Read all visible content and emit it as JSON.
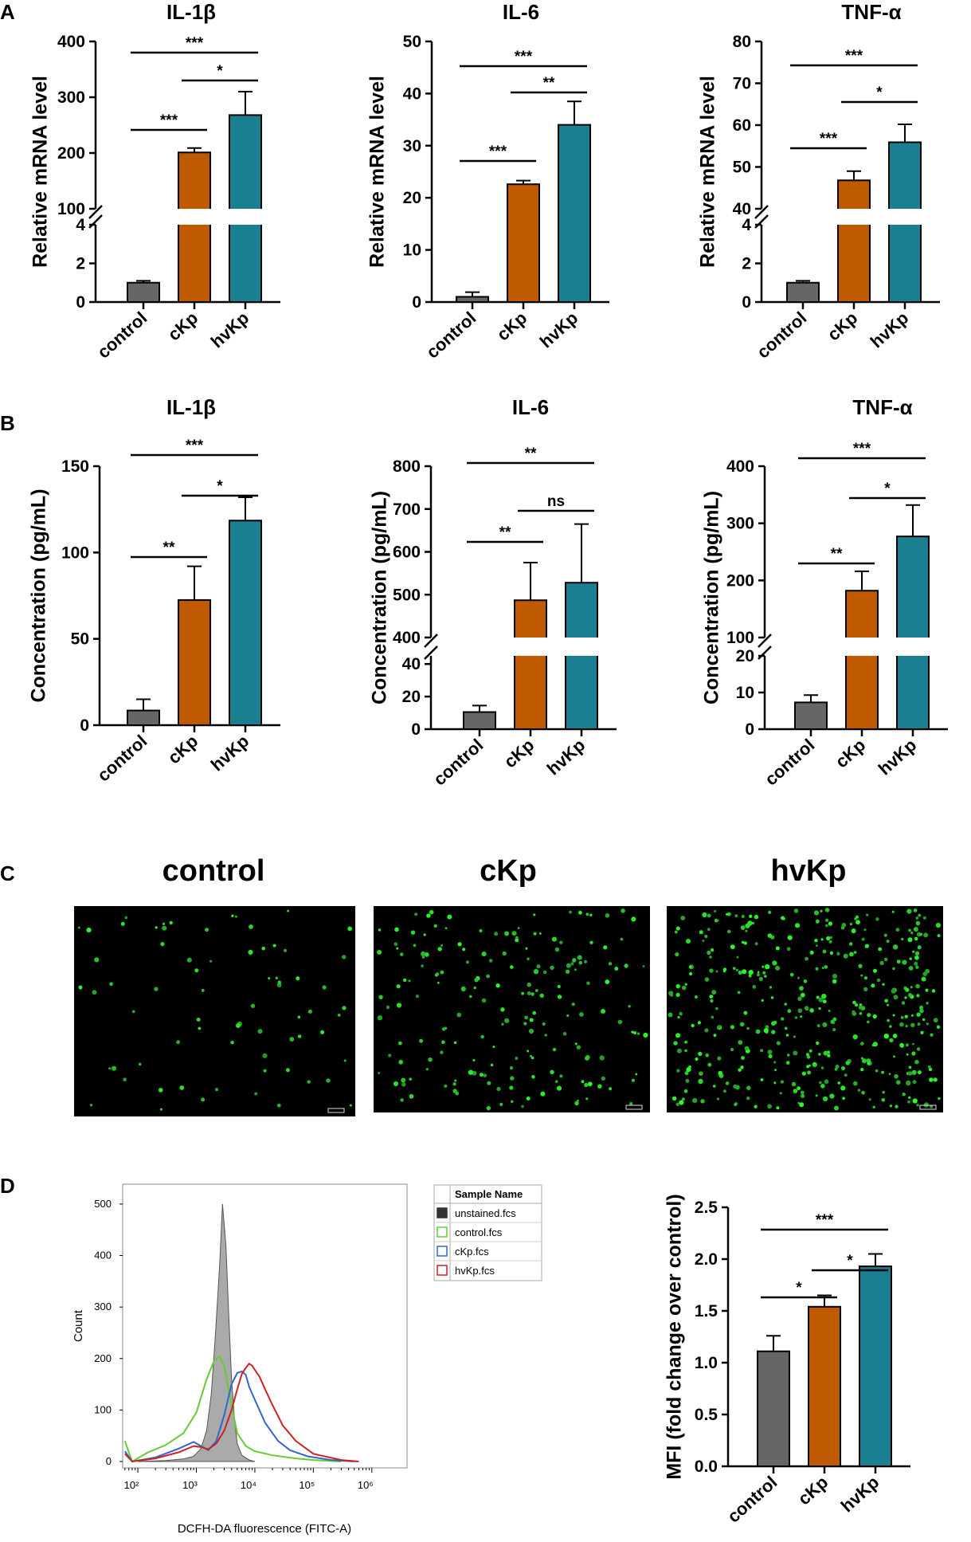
{
  "panel_letters": [
    "A",
    "B",
    "C",
    "D"
  ],
  "micro_titles": [
    "control",
    "cKp",
    "hvKp"
  ],
  "chart_data": [
    {
      "type": "bar",
      "panel": "A",
      "title": "IL-1β",
      "ylabel": "Relative mRNA level",
      "categories": [
        "control",
        "cKp",
        "hvKp"
      ],
      "values": [
        1.0,
        201,
        268
      ],
      "errors": [
        0.1,
        8,
        42
      ],
      "colors": [
        "#666666",
        "#C05A00",
        "#1A7F91"
      ],
      "axis_break": {
        "lower_range": [
          0,
          4
        ],
        "upper_range": [
          100,
          400
        ]
      },
      "lower_ticks": [
        "0",
        "2",
        "4"
      ],
      "upper_ticks": [
        "100",
        "200",
        "300",
        "400"
      ],
      "significance": [
        {
          "pair": [
            "cKp",
            "hvKp"
          ],
          "label": "*"
        },
        {
          "pair": [
            "control",
            "cKp"
          ],
          "label": "***"
        },
        {
          "pair": [
            "control",
            "hvKp"
          ],
          "label": "***"
        }
      ]
    },
    {
      "type": "bar",
      "panel": "A",
      "title": "IL-6",
      "ylabel": "Relative mRNA level",
      "categories": [
        "control",
        "cKp",
        "hvKp"
      ],
      "values": [
        1.0,
        22.6,
        34.0
      ],
      "errors": [
        0.9,
        0.7,
        4.5
      ],
      "colors": [
        "#666666",
        "#C05A00",
        "#1A7F91"
      ],
      "ylim": [
        0,
        50
      ],
      "ticks": [
        "0",
        "10",
        "20",
        "30",
        "40",
        "50"
      ],
      "significance": [
        {
          "pair": [
            "cKp",
            "hvKp"
          ],
          "label": "**"
        },
        {
          "pair": [
            "control",
            "cKp"
          ],
          "label": "***"
        },
        {
          "pair": [
            "control",
            "hvKp"
          ],
          "label": "***"
        }
      ]
    },
    {
      "type": "bar",
      "panel": "A",
      "title": "TNF-α",
      "ylabel": "Relative mRNA level",
      "categories": [
        "control",
        "cKp",
        "hvKp"
      ],
      "values": [
        1.0,
        46.8,
        55.9
      ],
      "errors": [
        0.1,
        2.2,
        4.3
      ],
      "colors": [
        "#666666",
        "#C05A00",
        "#1A7F91"
      ],
      "axis_break": {
        "lower_range": [
          0,
          4
        ],
        "upper_range": [
          40,
          80
        ]
      },
      "lower_ticks": [
        "0",
        "2",
        "4"
      ],
      "upper_ticks": [
        "40",
        "50",
        "60",
        "70",
        "80"
      ],
      "significance": [
        {
          "pair": [
            "cKp",
            "hvKp"
          ],
          "label": "*"
        },
        {
          "pair": [
            "control",
            "cKp"
          ],
          "label": "***"
        },
        {
          "pair": [
            "control",
            "hvKp"
          ],
          "label": "***"
        }
      ]
    },
    {
      "type": "bar",
      "panel": "B",
      "title": "IL-1β",
      "ylabel": "Concentration (pg/mL)",
      "categories": [
        "control",
        "cKp",
        "hvKp"
      ],
      "values": [
        8.5,
        72.5,
        118.5
      ],
      "errors": [
        6.5,
        19.5,
        13.5
      ],
      "colors": [
        "#666666",
        "#C05A00",
        "#1A7F91"
      ],
      "ylim": [
        0,
        150
      ],
      "ticks": [
        "0",
        "50",
        "100",
        "150"
      ],
      "significance": [
        {
          "pair": [
            "cKp",
            "hvKp"
          ],
          "label": "*"
        },
        {
          "pair": [
            "control",
            "cKp"
          ],
          "label": "**"
        },
        {
          "pair": [
            "control",
            "hvKp"
          ],
          "label": "***"
        }
      ]
    },
    {
      "type": "bar",
      "panel": "B",
      "title": "IL-6",
      "ylabel": "Concentration (pg/mL)",
      "categories": [
        "control",
        "cKp",
        "hvKp"
      ],
      "values": [
        10.5,
        487,
        528
      ],
      "errors": [
        4,
        88,
        137
      ],
      "colors": [
        "#666666",
        "#C05A00",
        "#1A7F91"
      ],
      "axis_break": {
        "lower_range": [
          0,
          45
        ],
        "upper_range": [
          400,
          800
        ]
      },
      "lower_ticks": [
        "0",
        "20",
        "40"
      ],
      "upper_ticks": [
        "400",
        "500",
        "600",
        "700",
        "800"
      ],
      "significance": [
        {
          "pair": [
            "cKp",
            "hvKp"
          ],
          "label": "ns"
        },
        {
          "pair": [
            "control",
            "cKp"
          ],
          "label": "**"
        },
        {
          "pair": [
            "control",
            "hvKp"
          ],
          "label": "**"
        }
      ]
    },
    {
      "type": "bar",
      "panel": "B",
      "title": "TNF-α",
      "ylabel": "Concentration (pg/mL)",
      "categories": [
        "control",
        "cKp",
        "hvKp"
      ],
      "values": [
        7.3,
        182,
        277
      ],
      "errors": [
        2,
        34,
        55
      ],
      "colors": [
        "#666666",
        "#C05A00",
        "#1A7F91"
      ],
      "axis_break": {
        "lower_range": [
          0,
          20
        ],
        "upper_range": [
          100,
          400
        ]
      },
      "lower_ticks": [
        "0",
        "10",
        "20"
      ],
      "upper_ticks": [
        "100",
        "200",
        "300",
        "400"
      ],
      "significance": [
        {
          "pair": [
            "cKp",
            "hvKp"
          ],
          "label": "*"
        },
        {
          "pair": [
            "control",
            "cKp"
          ],
          "label": "**"
        },
        {
          "pair": [
            "control",
            "hvKp"
          ],
          "label": "***"
        }
      ]
    },
    {
      "type": "area",
      "panel": "D",
      "title": "",
      "xlabel": "DCFH-DA fluorescence (FITC-A)",
      "ylabel": "Count",
      "x_scale": "log",
      "x_ticks": [
        "10²",
        "10³",
        "10⁴",
        "10⁵",
        "10⁶"
      ],
      "ylim": [
        0,
        520
      ],
      "y_ticks": [
        "0",
        "100",
        "200",
        "300",
        "400",
        "500"
      ],
      "legend_header": "Sample Name",
      "series": [
        {
          "name": "unstained.fcs",
          "color": "#333333",
          "x": [
            100,
            300,
            600,
            900,
            1200,
            1500,
            1800,
            2100,
            2500,
            2800,
            3200,
            3600,
            4000,
            4500,
            5000,
            6000,
            8000,
            10000
          ],
          "y": [
            0,
            2,
            5,
            10,
            25,
            60,
            130,
            240,
            380,
            500,
            420,
            280,
            160,
            80,
            35,
            12,
            3,
            0
          ]
        },
        {
          "name": "control.fcs",
          "color": "#66CC33",
          "x": [
            60,
            80,
            150,
            300,
            600,
            1000,
            1500,
            2000,
            2500,
            3000,
            4000,
            5000,
            7000,
            10000,
            20000,
            50000,
            100000,
            300000
          ],
          "y": [
            40,
            0,
            18,
            32,
            55,
            95,
            160,
            195,
            205,
            185,
            110,
            55,
            30,
            20,
            12,
            6,
            3,
            0
          ]
        },
        {
          "name": "cKp.fcs",
          "color": "#3366CC",
          "x": [
            60,
            80,
            200,
            500,
            900,
            1200,
            1600,
            2200,
            3000,
            4000,
            5000,
            6000,
            7000,
            8000,
            10000,
            15000,
            25000,
            40000,
            80000,
            200000,
            500000
          ],
          "y": [
            20,
            0,
            8,
            25,
            38,
            30,
            22,
            40,
            90,
            150,
            172,
            175,
            168,
            145,
            120,
            75,
            40,
            22,
            10,
            3,
            0
          ]
        },
        {
          "name": "hvKp.fcs",
          "color": "#CC2222",
          "x": [
            60,
            80,
            200,
            500,
            900,
            1200,
            1600,
            2200,
            3000,
            4000,
            5000,
            6000,
            7000,
            8000,
            9000,
            10000,
            12000,
            15000,
            20000,
            30000,
            50000,
            100000,
            300000,
            600000
          ],
          "y": [
            15,
            0,
            6,
            18,
            30,
            28,
            24,
            35,
            60,
            100,
            140,
            170,
            182,
            190,
            186,
            178,
            165,
            140,
            110,
            70,
            40,
            15,
            3,
            0
          ]
        }
      ]
    },
    {
      "type": "bar",
      "panel": "D",
      "title": "",
      "ylabel": "MFI (fold change over control)",
      "categories": [
        "control",
        "cKp",
        "hvKp"
      ],
      "values": [
        1.11,
        1.54,
        1.93
      ],
      "errors": [
        0.15,
        0.11,
        0.12
      ],
      "colors": [
        "#666666",
        "#C05A00",
        "#1A7F91"
      ],
      "ylim": [
        0,
        2.5
      ],
      "ticks": [
        "0.0",
        "0.5",
        "1.0",
        "1.5",
        "2.0",
        "2.5"
      ],
      "significance": [
        {
          "pair": [
            "cKp",
            "hvKp"
          ],
          "label": "*"
        },
        {
          "pair": [
            "control",
            "cKp"
          ],
          "label": "*"
        },
        {
          "pair": [
            "control",
            "hvKp"
          ],
          "label": "***"
        }
      ]
    }
  ]
}
